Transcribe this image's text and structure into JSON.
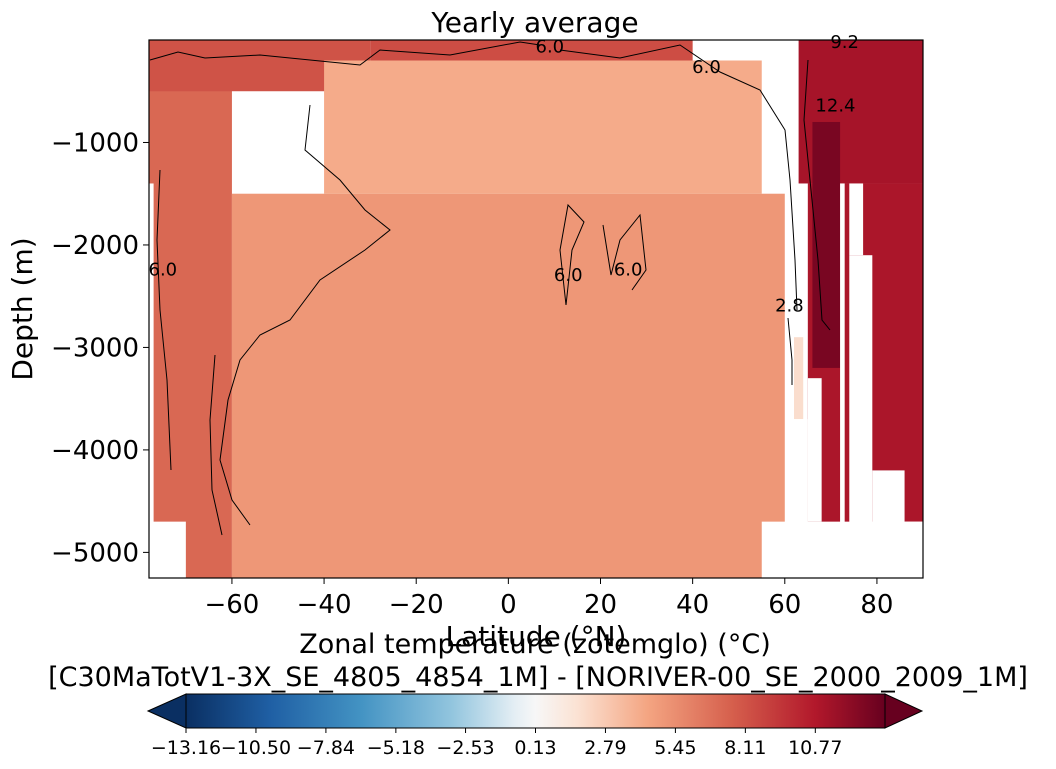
{
  "chart_data": {
    "type": "heatmap",
    "title": "Yearly average",
    "xlabel": "Latitude (°N)",
    "ylabel": "Depth (m)",
    "xlim": [
      -78,
      90
    ],
    "ylim": [
      -5250,
      0
    ],
    "x_ticks": [
      -60,
      -40,
      -20,
      0,
      20,
      40,
      60,
      80
    ],
    "x_tick_labels": [
      "−60",
      "−40",
      "−20",
      "0",
      "20",
      "40",
      "60",
      "80"
    ],
    "y_ticks": [
      -1000,
      -2000,
      -3000,
      -4000,
      -5000
    ],
    "y_tick_labels": [
      "−1000",
      "−2000",
      "−3000",
      "−4000",
      "−5000"
    ],
    "grid": false,
    "colormap": "RdBu_r",
    "colorbar": {
      "label_line1": "Zonal temperature (zotemglo) (°C)",
      "label_line2": "[C30MaTotV1-3X_SE_4805_4854_1M] - [NORIVER-00_SE_2000_2009_1M]",
      "vmin": -13.16,
      "vmax": 13.42,
      "ticks": [
        -13.16,
        -10.5,
        -7.84,
        -5.18,
        -2.53,
        0.13,
        2.79,
        5.45,
        8.11,
        10.77
      ],
      "tick_labels": [
        "−13.16",
        "−10.50",
        "−7.84",
        "−5.18",
        "−2.53",
        "0.13",
        "2.79",
        "5.45",
        "8.11",
        "10.77"
      ],
      "extend": "both"
    },
    "contour_labels": [
      {
        "text": "6.0",
        "x": 9,
        "y": -120
      },
      {
        "text": "6.0",
        "x": 43,
        "y": -320
      },
      {
        "text": "6.0",
        "x": -75,
        "y": -2300
      },
      {
        "text": "6.0",
        "x": 13,
        "y": -2350
      },
      {
        "text": "6.0",
        "x": 26,
        "y": -2300
      },
      {
        "text": "2.8",
        "x": 61,
        "y": -2650
      },
      {
        "text": "12.4",
        "x": 71,
        "y": -700
      },
      {
        "text": "9.2",
        "x": 73,
        "y": -80
      }
    ],
    "field_regions": [
      {
        "region": "southern_ocean_west",
        "xmin": -78,
        "xmax": -60,
        "depth_min": 0,
        "depth_max": -5250,
        "value": 7.8
      },
      {
        "region": "southern_ocean_surface",
        "xmin": -78,
        "xmax": -30,
        "depth_min": 0,
        "depth_max": -500,
        "value": 8.6
      },
      {
        "region": "tropical_surface",
        "xmin": -30,
        "xmax": 40,
        "depth_min": 0,
        "depth_max": -200,
        "value": 8.8
      },
      {
        "region": "subsurface_band",
        "xmin": -40,
        "xmax": 55,
        "depth_min": -200,
        "depth_max": -1500,
        "value": 5.2
      },
      {
        "region": "interior",
        "xmin": -60,
        "xmax": 60,
        "depth_min": -1500,
        "depth_max": -5250,
        "value": 6.0
      },
      {
        "region": "arctic_surface",
        "xmin": 63,
        "xmax": 90,
        "depth_min": 0,
        "depth_max": -1400,
        "value": 11.2
      },
      {
        "region": "arctic_deep",
        "xmin": 65,
        "xmax": 90,
        "depth_min": -1400,
        "depth_max": -4700,
        "value": 11.0
      },
      {
        "region": "high_lat_core",
        "xmin": 66,
        "xmax": 72,
        "depth_min": -800,
        "depth_max": -3200,
        "value": 12.8
      },
      {
        "region": "nordic_edge",
        "xmin": 62,
        "xmax": 64,
        "depth_min": -2900,
        "depth_max": -3700,
        "value": 3.0
      }
    ]
  }
}
